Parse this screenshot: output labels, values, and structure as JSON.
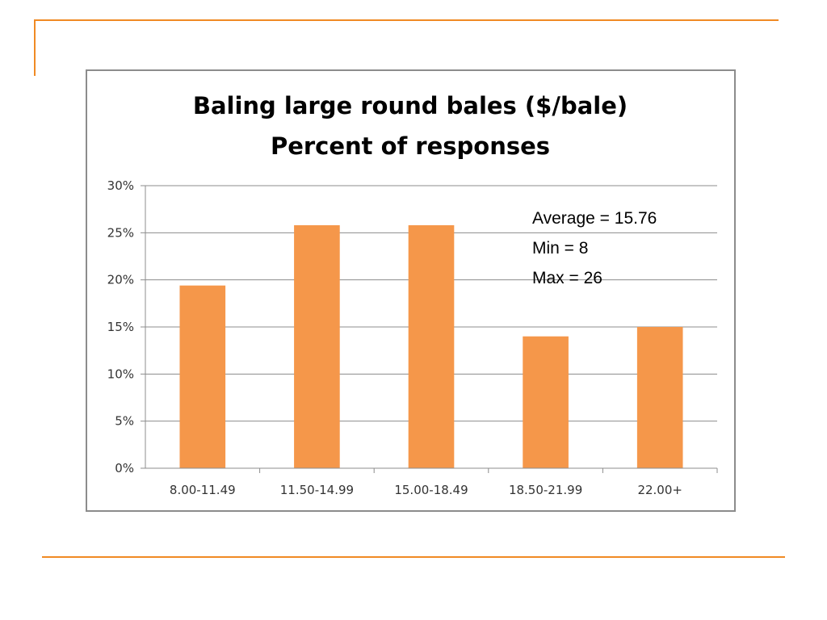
{
  "colors": {
    "accent": "#f08a24",
    "bar": "#f5974a",
    "gridline": "#8c8c8c",
    "frame": "#8c8c8c"
  },
  "annotations": {
    "average": "Average = 15.76",
    "min": "Min = 8",
    "max": "Max = 26"
  },
  "chart_data": {
    "type": "bar",
    "title": [
      "Baling large round bales ($/bale)",
      "Percent of responses"
    ],
    "categories": [
      "8.00-11.49",
      "11.50-14.99",
      "15.00-18.49",
      "18.50-21.99",
      "22.00+"
    ],
    "values": [
      19.4,
      25.8,
      25.8,
      14.0,
      15.0
    ],
    "ylim": [
      0,
      30
    ],
    "yticks": [
      0,
      5,
      10,
      15,
      20,
      25,
      30
    ],
    "ytick_suffix": "%",
    "grid": true,
    "legend": "none"
  }
}
